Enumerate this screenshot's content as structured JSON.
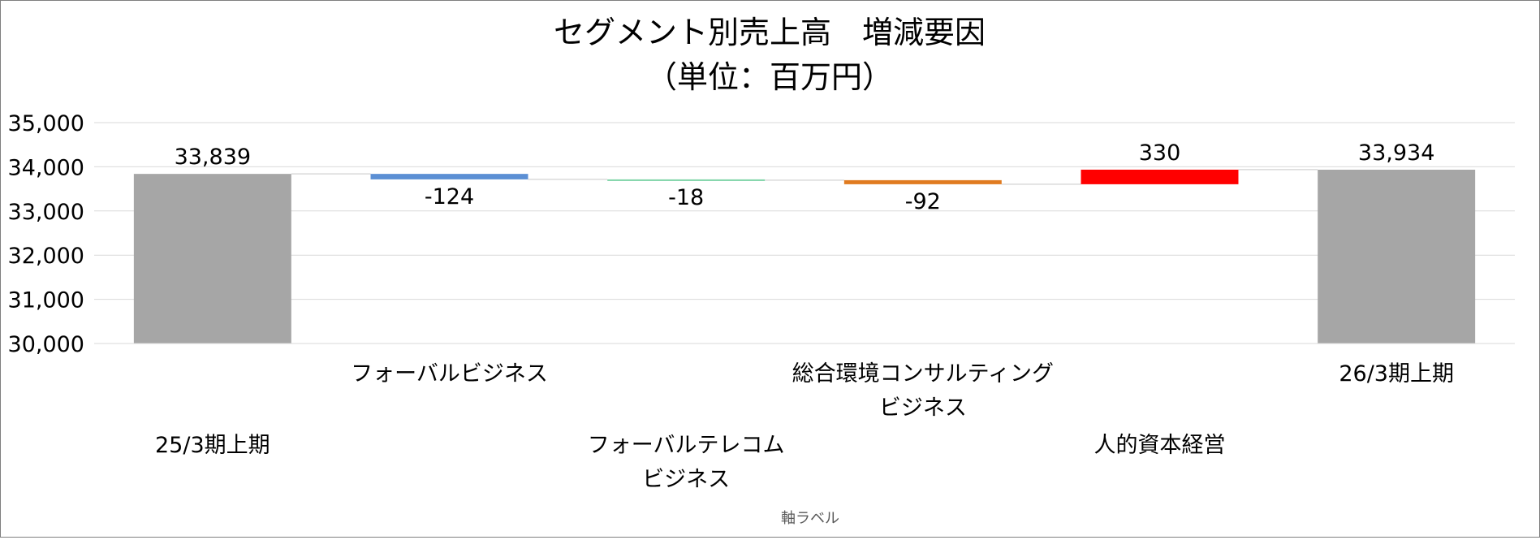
{
  "chart_data": {
    "type": "bar",
    "subtype": "waterfall",
    "title": "セグメント別売上高　増減要因",
    "subtitle": "（単位：百万円）",
    "xlabel": "軸ラベル",
    "ylabel": "",
    "ylim": [
      30000,
      35000
    ],
    "yticks": [
      30000,
      31000,
      32000,
      33000,
      34000,
      35000
    ],
    "ytick_labels": [
      "30,000",
      "31,000",
      "32,000",
      "33,000",
      "34,000",
      "35,000"
    ],
    "grid": true,
    "categories": [
      {
        "label": [
          "25/3期上期"
        ],
        "row": "lower"
      },
      {
        "label": [
          "フォーバルビジネス"
        ],
        "row": "upper"
      },
      {
        "label": [
          "フォーバルテレコム",
          "ビジネス"
        ],
        "row": "lower"
      },
      {
        "label": [
          "総合環境コンサルティング",
          "ビジネス"
        ],
        "row": "upper"
      },
      {
        "label": [
          "人的資本経営"
        ],
        "row": "lower"
      },
      {
        "label": [
          "26/3期上期"
        ],
        "row": "upper"
      }
    ],
    "values": [
      33839,
      -124,
      -18,
      -92,
      330,
      33934
    ],
    "value_labels": [
      "33,839",
      "-124",
      "-18",
      "-92",
      "330",
      "33,934"
    ],
    "bar_kind": [
      "total",
      "delta",
      "delta",
      "delta",
      "delta",
      "total"
    ],
    "colors": [
      "#a6a6a6",
      "#5b8fd4",
      "#7fd4a8",
      "#e07b20",
      "#ff0000",
      "#a6a6a6"
    ],
    "connector_color": "#d9d9d9",
    "gridline_color": "#d9d9d9"
  }
}
